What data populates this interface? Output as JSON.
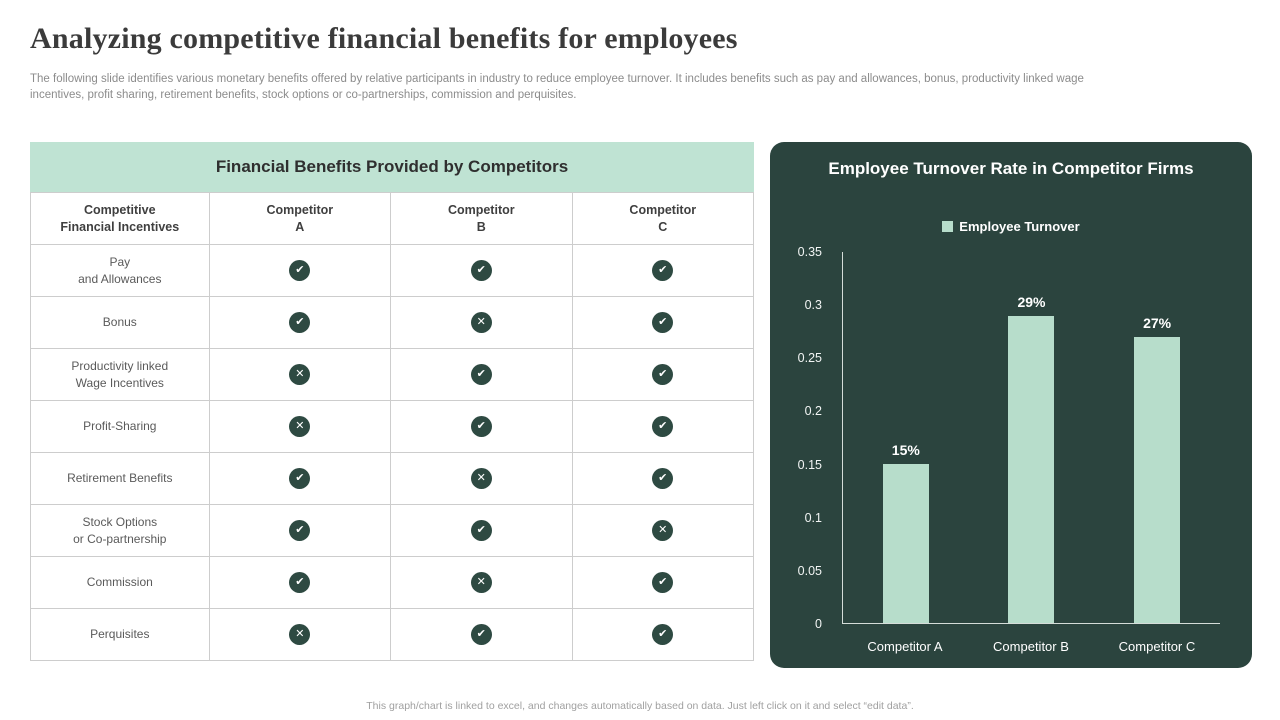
{
  "slide": {
    "title": "Analyzing competitive financial benefits for employees",
    "subtitle": "The following slide identifies various monetary benefits offered by relative participants in industry to reduce employee turnover. It includes benefits such as pay and allowances, bonus, productivity linked wage incentives, profit sharing, retirement benefits, stock options or co-partnerships, commission and perquisites.",
    "footer": "This graph/chart is linked to excel, and changes automatically based on data. Just left click on it and select “edit data”."
  },
  "icons": {
    "check_glyph": "✔",
    "cross_glyph": "✕"
  },
  "colors": {
    "mint": "#b7ddcb",
    "table_header_bg": "#bfe3d3",
    "icon_circle": "#2e4a42",
    "chart_bg": "#2b443e",
    "title_text": "#3b3b3b",
    "muted_text": "#8c8c8c"
  },
  "chart_data": [
    {
      "type": "table",
      "title": "Financial Benefits Provided by Competitors",
      "columns": [
        "Competitive\nFinancial Incentives",
        "Competitor\nA",
        "Competitor\nB",
        "Competitor\nC"
      ],
      "rows": [
        {
          "label": "Pay\nand Allowances",
          "values": [
            "check",
            "check",
            "check"
          ]
        },
        {
          "label": "Bonus",
          "values": [
            "check",
            "cross",
            "check"
          ]
        },
        {
          "label": "Productivity linked\nWage Incentives",
          "values": [
            "cross",
            "check",
            "check"
          ]
        },
        {
          "label": "Profit-Sharing",
          "values": [
            "cross",
            "check",
            "check"
          ]
        },
        {
          "label": "Retirement Benefits",
          "values": [
            "check",
            "cross",
            "check"
          ]
        },
        {
          "label": "Stock Options\nor Co-partnership",
          "values": [
            "check",
            "check",
            "cross"
          ]
        },
        {
          "label": "Commission",
          "values": [
            "check",
            "cross",
            "check"
          ]
        },
        {
          "label": "Perquisites",
          "values": [
            "cross",
            "check",
            "check"
          ]
        }
      ]
    },
    {
      "type": "bar",
      "title": "Employee Turnover Rate in Competitor Firms",
      "legend": [
        "Employee Turnover"
      ],
      "legend_position": "top",
      "categories": [
        "Competitor A",
        "Competitor B",
        "Competitor C"
      ],
      "values": [
        0.15,
        0.29,
        0.27
      ],
      "data_labels": [
        "15%",
        "29%",
        "27%"
      ],
      "xlabel": "",
      "ylabel": "",
      "ylim": [
        0,
        0.35
      ],
      "yticks": [
        0,
        0.05,
        0.1,
        0.15,
        0.2,
        0.25,
        0.3,
        0.35
      ],
      "grid": false,
      "bar_color": "#b7ddcb"
    }
  ]
}
